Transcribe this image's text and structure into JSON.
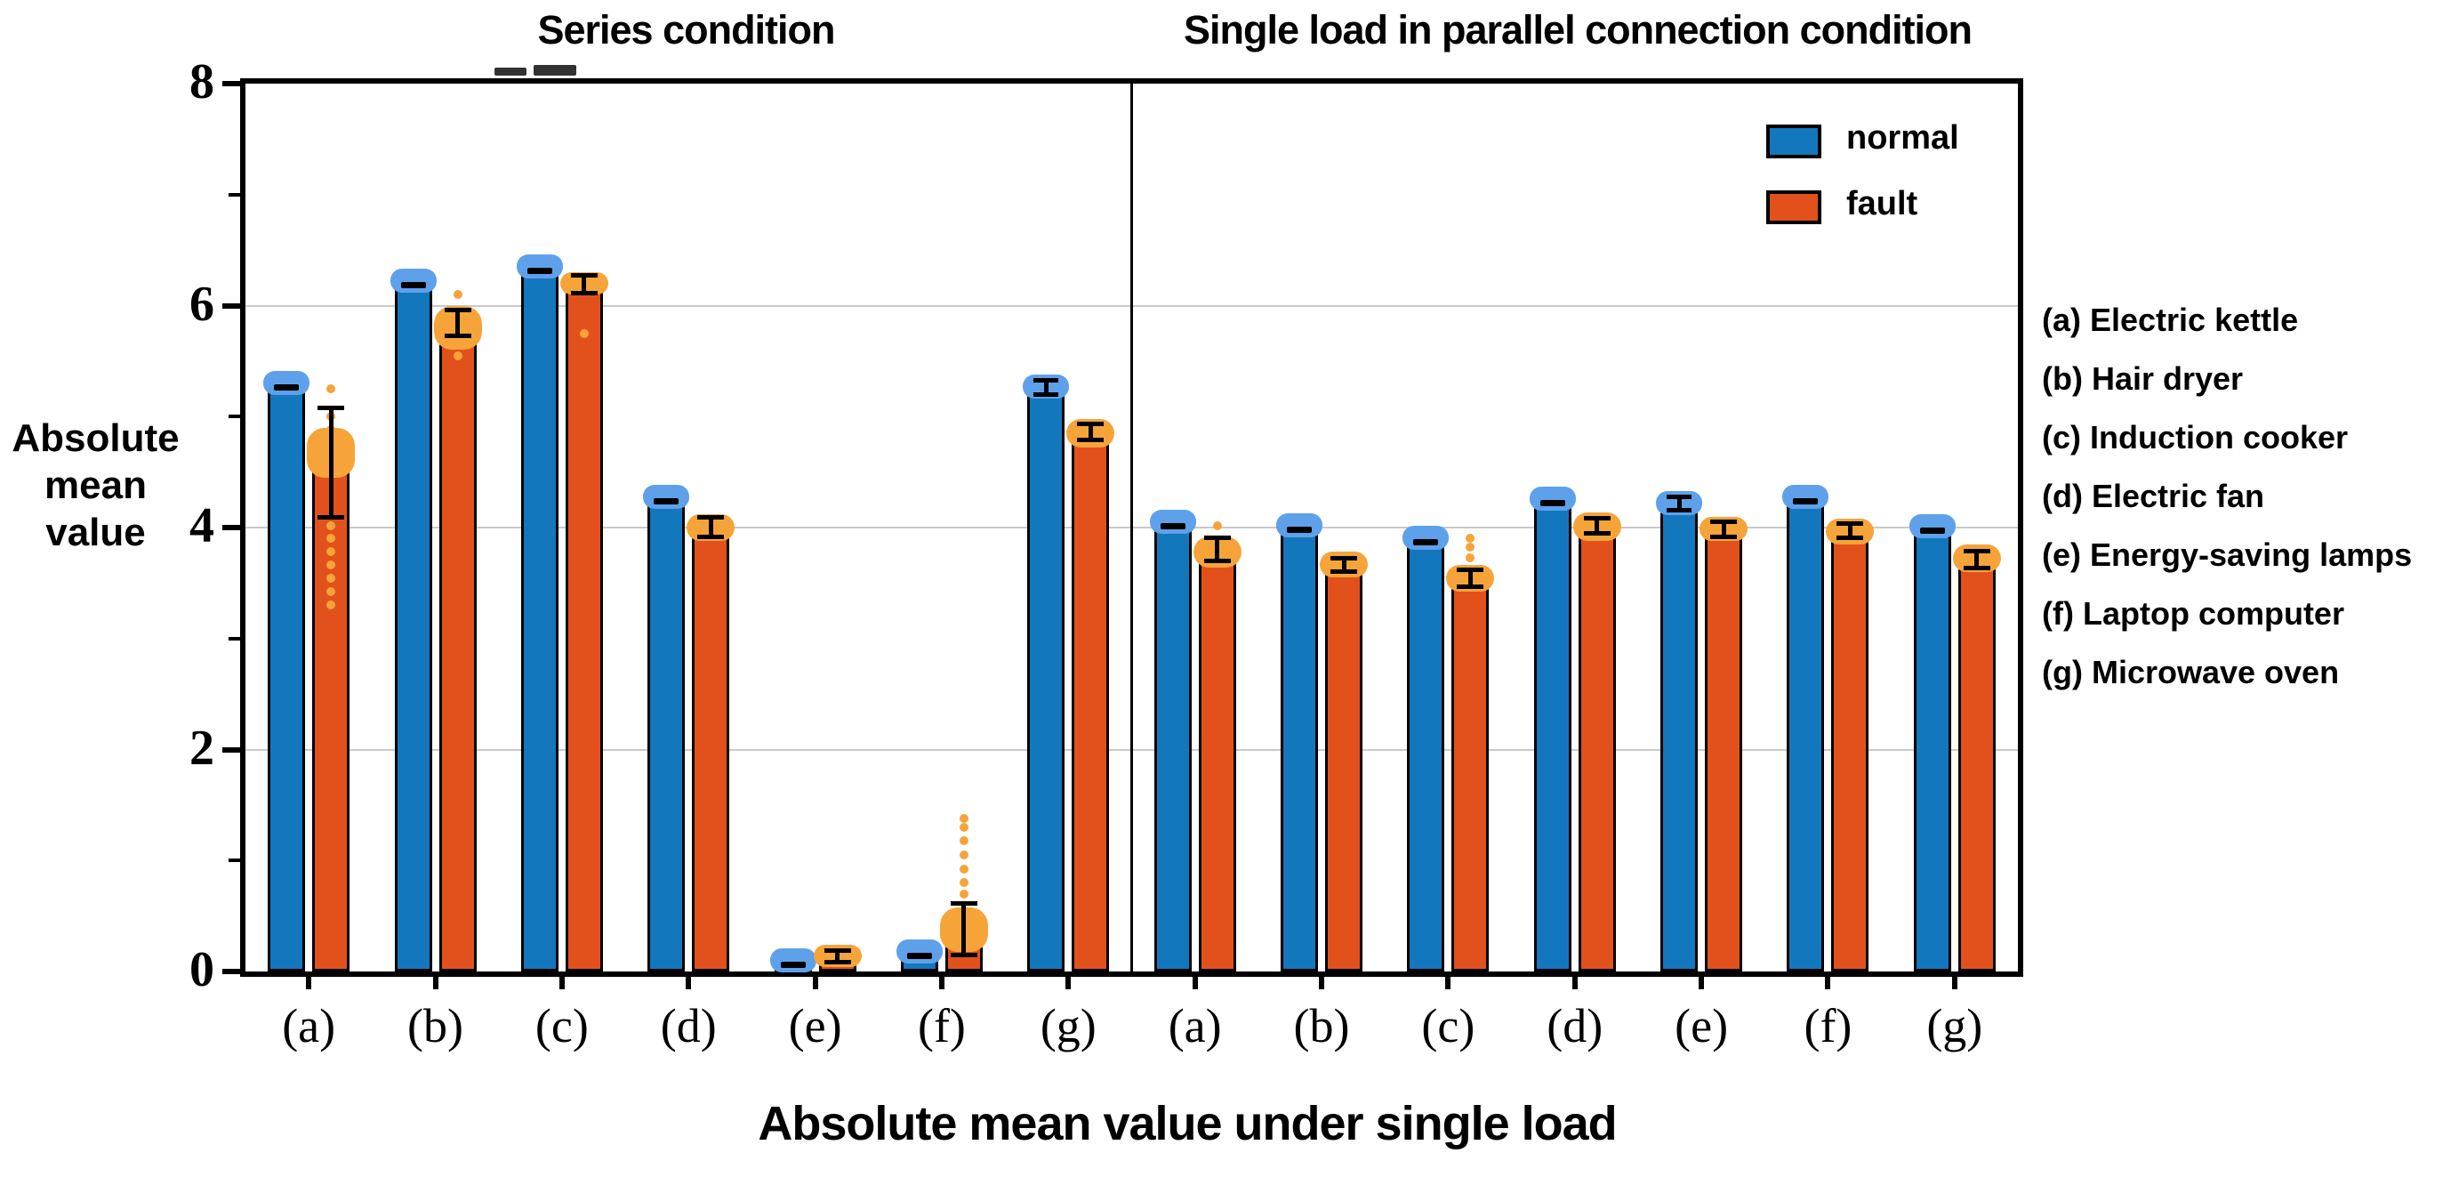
{
  "ui": {
    "panel_titles": [
      "Series condition",
      "Single load in parallel connection condition"
    ],
    "y_axis_label_lines": [
      "Absolute",
      "mean",
      "value"
    ],
    "x_axis_title": "Absolute mean value under single load",
    "legend_items": [
      {
        "label": "normal",
        "color": "#1377be"
      },
      {
        "label": "fault",
        "color": "#e2511b"
      }
    ],
    "device_legend": [
      "(a) Electric kettle",
      "(b) Hair dryer",
      "(c) Induction cooker",
      "(d) Electric fan",
      "(e) Energy-saving lamps",
      "(f) Laptop computer",
      "(g) Microwave oven"
    ]
  },
  "chart_data": {
    "type": "bar",
    "ylabel": "Absolute mean value",
    "xlabel": "Absolute mean value under single load",
    "ylim": [
      0,
      8
    ],
    "y_major_ticks": [
      0,
      2,
      4,
      6,
      8
    ],
    "y_minor_ticks": [
      1,
      3,
      5,
      7
    ],
    "gridlines": [
      2,
      4,
      6
    ],
    "grid": "horizontal-light",
    "legend": [
      "normal",
      "fault"
    ],
    "legend_position": "top-right-inside-right-panel",
    "colors": {
      "normal": "#1377be",
      "normal_scatter": "#5ea1ea",
      "fault": "#e2511b",
      "fault_scatter": "#f6a43a",
      "gridline": "#c9c9c9"
    },
    "panels": [
      {
        "title": "Series condition",
        "categories": [
          "(a)",
          "(b)",
          "(c)",
          "(d)",
          "(e)",
          "(f)",
          "(g)"
        ],
        "series": [
          {
            "name": "normal",
            "values": [
              5.3,
              6.22,
              6.35,
              4.27,
              0.1,
              0.18,
              5.27
            ],
            "error_bars": [
              null,
              null,
              null,
              null,
              null,
              null,
              [
                5.2,
                5.33
              ]
            ]
          },
          {
            "name": "fault",
            "values": [
              4.6,
              5.85,
              6.2,
              4.0,
              0.14,
              0.35,
              4.87
            ],
            "error_bars": [
              [
                4.1,
                5.08
              ],
              [
                5.73,
                5.96
              ],
              [
                6.12,
                6.28
              ],
              [
                3.92,
                4.1
              ],
              [
                0.09,
                0.19
              ],
              [
                0.15,
                0.62
              ],
              [
                4.79,
                4.94
              ]
            ],
            "scatter_clusters": [
              [
                4.45,
                4.9
              ],
              [
                5.6,
                6.0
              ],
              [
                6.1,
                6.3
              ],
              [
                3.88,
                4.12
              ],
              [
                0.04,
                0.24
              ],
              [
                0.18,
                0.58
              ],
              [
                4.72,
                4.98
              ]
            ],
            "outlier_dots": [
              [
                3.3,
                3.42,
                3.54,
                3.66,
                3.78,
                3.9,
                4.02,
                4.88,
                5.0,
                5.25
              ],
              [
                5.55,
                6.1
              ],
              [
                5.75
              ],
              [],
              [],
              [
                0.7,
                0.8,
                0.92,
                1.05,
                1.18,
                1.3,
                1.38
              ],
              []
            ]
          }
        ]
      },
      {
        "title": "Single load in parallel connection condition",
        "categories": [
          "(a)",
          "(b)",
          "(c)",
          "(d)",
          "(e)",
          "(f)",
          "(g)"
        ],
        "series": [
          {
            "name": "normal",
            "values": [
              4.05,
              4.02,
              3.9,
              4.26,
              4.22,
              4.27,
              4.01
            ],
            "error_bars": [
              null,
              null,
              null,
              null,
              [
                4.16,
                4.28
              ],
              null,
              null
            ]
          },
          {
            "name": "fault",
            "values": [
              3.8,
              3.67,
              3.55,
              4.02,
              4.0,
              3.98,
              3.72
            ],
            "error_bars": [
              [
                3.7,
                3.91
              ],
              [
                3.61,
                3.73
              ],
              [
                3.47,
                3.62
              ],
              [
                3.95,
                4.09
              ],
              [
                3.92,
                4.06
              ],
              [
                3.91,
                4.04
              ],
              [
                3.64,
                3.79
              ]
            ],
            "scatter_clusters": [
              [
                3.64,
                3.92
              ],
              [
                3.55,
                3.78
              ],
              [
                3.42,
                3.66
              ],
              [
                3.88,
                4.14
              ],
              [
                3.88,
                4.1
              ],
              [
                3.85,
                4.08
              ],
              [
                3.6,
                3.85
              ]
            ],
            "outlier_dots": [
              [
                4.02
              ],
              [],
              [
                3.73,
                3.82,
                3.9
              ],
              [],
              [],
              [],
              []
            ]
          }
        ]
      }
    ],
    "category_legend": [
      "(a) Electric kettle",
      "(b) Hair dryer",
      "(c) Induction cooker",
      "(d) Electric fan",
      "(e) Energy-saving lamps",
      "(f) Laptop computer",
      "(g) Microwave oven"
    ]
  }
}
